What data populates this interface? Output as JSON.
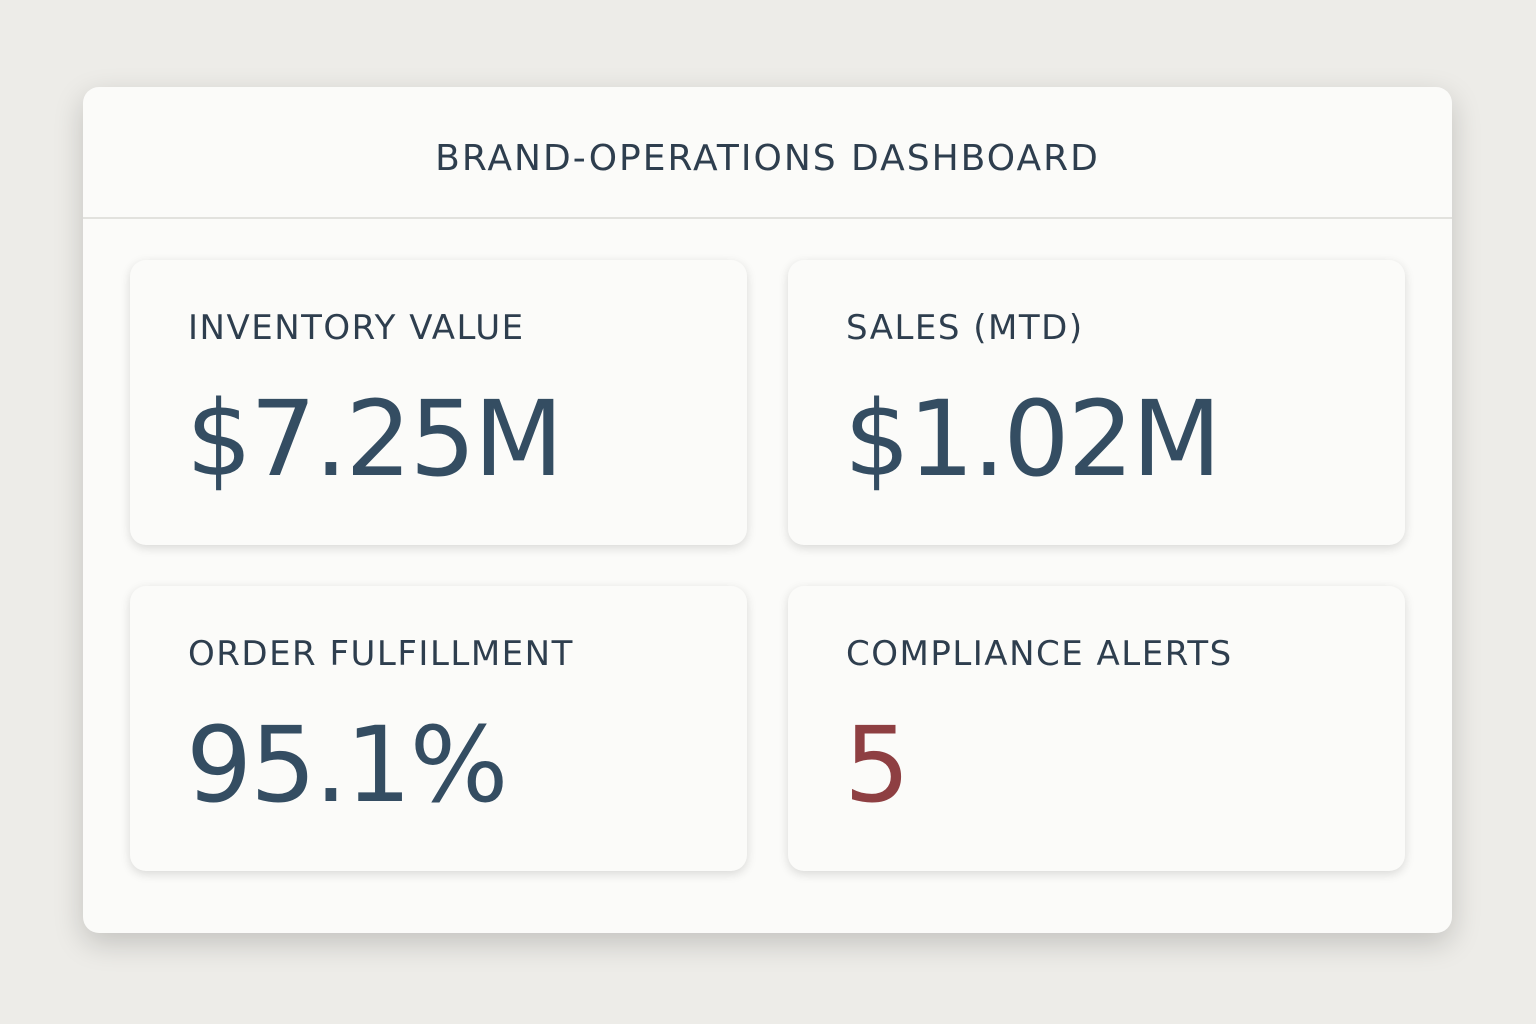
{
  "header": {
    "title": "BRAND-OPERATIONS DASHBOARD"
  },
  "cards": [
    {
      "label": "INVENTORY VALUE",
      "value": "$7.25M"
    },
    {
      "label": "SALES (MTD)",
      "value": "$1.02M"
    },
    {
      "label": "ORDER FULFILLMENT",
      "value": "95.1%"
    },
    {
      "label": "COMPLIANCE ALERTS",
      "value": "5"
    }
  ]
}
